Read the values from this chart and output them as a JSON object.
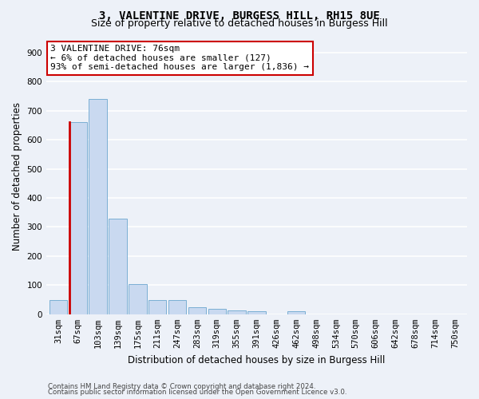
{
  "title": "3, VALENTINE DRIVE, BURGESS HILL, RH15 8UE",
  "subtitle": "Size of property relative to detached houses in Burgess Hill",
  "xlabel": "Distribution of detached houses by size in Burgess Hill",
  "ylabel": "Number of detached properties",
  "footer_line1": "Contains HM Land Registry data © Crown copyright and database right 2024.",
  "footer_line2": "Contains public sector information licensed under the Open Government Licence v3.0.",
  "bin_labels": [
    "31sqm",
    "67sqm",
    "103sqm",
    "139sqm",
    "175sqm",
    "211sqm",
    "247sqm",
    "283sqm",
    "319sqm",
    "355sqm",
    "391sqm",
    "426sqm",
    "462sqm",
    "498sqm",
    "534sqm",
    "570sqm",
    "606sqm",
    "642sqm",
    "678sqm",
    "714sqm",
    "750sqm"
  ],
  "bar_values": [
    50,
    660,
    740,
    330,
    105,
    50,
    50,
    25,
    18,
    13,
    10,
    0,
    10,
    0,
    0,
    0,
    0,
    0,
    0,
    0,
    0
  ],
  "bar_color": "#c9d9f0",
  "bar_edge_color": "#7bafd4",
  "highlight_bar_index": 1,
  "highlight_color": "#cc0000",
  "annotation_text": "3 VALENTINE DRIVE: 76sqm\n← 6% of detached houses are smaller (127)\n93% of semi-detached houses are larger (1,836) →",
  "annotation_box_color": "#cc0000",
  "ylim": [
    0,
    950
  ],
  "yticks": [
    0,
    100,
    200,
    300,
    400,
    500,
    600,
    700,
    800,
    900
  ],
  "bg_color": "#edf1f8",
  "plot_bg_color": "#edf1f8",
  "grid_color": "#ffffff",
  "title_fontsize": 10,
  "subtitle_fontsize": 9,
  "axis_label_fontsize": 8.5,
  "tick_fontsize": 7.5,
  "footer_fontsize": 6.2
}
